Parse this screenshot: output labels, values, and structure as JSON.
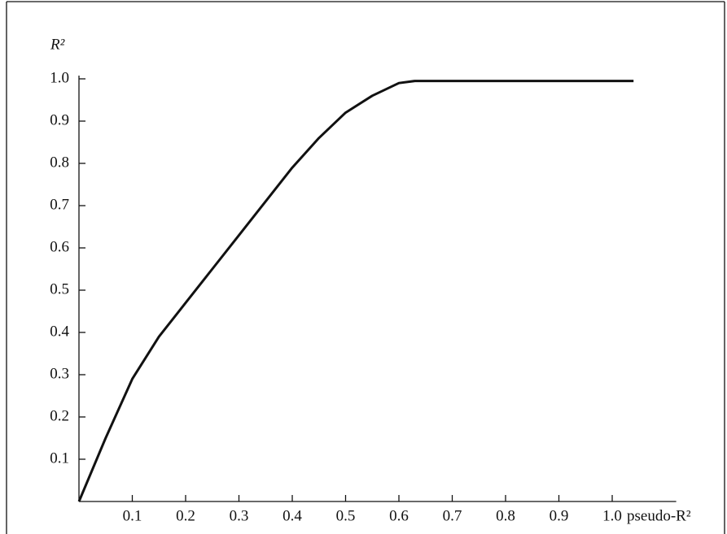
{
  "chart_data": {
    "type": "line",
    "y_label": "R²",
    "x_label": "pseudo-R²",
    "x": [
      0,
      0.05,
      0.1,
      0.15,
      0.2,
      0.25,
      0.3,
      0.35,
      0.4,
      0.45,
      0.5,
      0.55,
      0.6,
      0.63,
      1.04
    ],
    "series": [
      {
        "color": "#111111",
        "values": [
          0,
          0.15,
          0.29,
          0.39,
          0.47,
          0.55,
          0.63,
          0.71,
          0.79,
          0.86,
          0.92,
          0.96,
          0.99,
          0.995,
          0.995
        ]
      }
    ],
    "xlim": [
      0,
      1.12
    ],
    "ylim": [
      0,
      1
    ],
    "xticks": [
      0.1,
      0.2,
      0.3,
      0.4,
      0.5,
      0.6,
      0.7,
      0.8,
      0.9,
      {
        "value": 1,
        "label": "1.0"
      }
    ],
    "yticks": [
      0.1,
      0.2,
      0.3,
      0.4,
      0.5,
      0.6,
      0.7,
      0.8,
      0.9,
      {
        "value": 1,
        "label": "1.0"
      }
    ],
    "grid": false
  }
}
